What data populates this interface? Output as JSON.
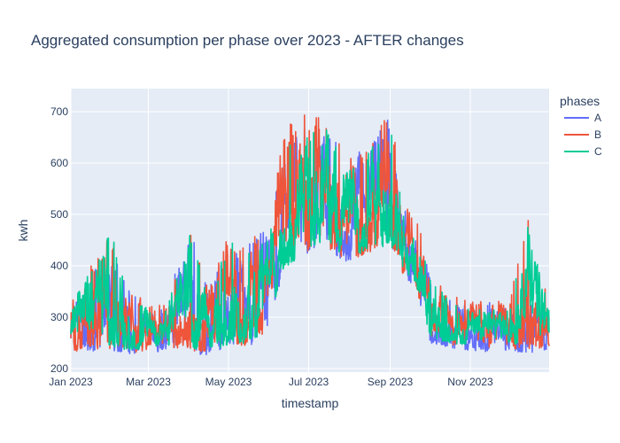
{
  "chart_data": {
    "type": "line",
    "title": "Aggregated consumption per phase over 2023 - AFTER changes",
    "xlabel": "timestamp",
    "ylabel": "kwh",
    "x_range": [
      "2023-01-01",
      "2023-12-31"
    ],
    "ylim": [
      193,
      745
    ],
    "x_ticks": [
      {
        "date": "2023-01-01",
        "label": "Jan 2023"
      },
      {
        "date": "2023-03-01",
        "label": "Mar 2023"
      },
      {
        "date": "2023-05-01",
        "label": "May 2023"
      },
      {
        "date": "2023-07-01",
        "label": "Jul 2023"
      },
      {
        "date": "2023-09-01",
        "label": "Sep 2023"
      },
      {
        "date": "2023-11-01",
        "label": "Nov 2023"
      }
    ],
    "y_ticks": [
      200,
      300,
      400,
      500,
      600,
      700
    ],
    "grid": true,
    "plot_background": "#e5ecf6",
    "legend": {
      "title": "phases",
      "placement": "right"
    },
    "series": [
      {
        "name": "A",
        "color": "#636efa",
        "x": [
          "2023-01-01",
          "2023-01-15",
          "2023-02-01",
          "2023-02-15",
          "2023-03-01",
          "2023-03-15",
          "2023-04-01",
          "2023-04-15",
          "2023-05-01",
          "2023-05-15",
          "2023-06-01",
          "2023-06-10",
          "2023-06-20",
          "2023-07-01",
          "2023-07-15",
          "2023-08-01",
          "2023-08-15",
          "2023-09-01",
          "2023-09-10",
          "2023-09-20",
          "2023-10-01",
          "2023-10-15",
          "2023-11-01",
          "2023-11-15",
          "2023-12-01",
          "2023-12-15",
          "2023-12-31"
        ],
        "band_low": [
          225,
          235,
          230,
          225,
          230,
          235,
          230,
          225,
          235,
          240,
          260,
          380,
          400,
          420,
          430,
          400,
          420,
          430,
          380,
          360,
          250,
          240,
          235,
          230,
          235,
          230,
          235
        ],
        "band_high": [
          335,
          400,
          430,
          350,
          320,
          320,
          500,
          360,
          430,
          440,
          480,
          620,
          660,
          690,
          660,
          610,
          640,
          700,
          520,
          500,
          380,
          340,
          320,
          330,
          320,
          330,
          320
        ]
      },
      {
        "name": "B",
        "color": "#ef553b",
        "x": [
          "2023-01-01",
          "2023-01-15",
          "2023-02-01",
          "2023-02-15",
          "2023-03-01",
          "2023-03-15",
          "2023-04-01",
          "2023-04-15",
          "2023-05-01",
          "2023-05-15",
          "2023-06-01",
          "2023-06-10",
          "2023-06-20",
          "2023-07-01",
          "2023-07-15",
          "2023-08-01",
          "2023-08-15",
          "2023-09-01",
          "2023-09-10",
          "2023-09-20",
          "2023-10-01",
          "2023-10-15",
          "2023-11-01",
          "2023-11-15",
          "2023-12-01",
          "2023-12-15",
          "2023-12-31"
        ],
        "band_low": [
          230,
          240,
          235,
          230,
          235,
          240,
          235,
          230,
          240,
          245,
          265,
          385,
          405,
          425,
          435,
          405,
          425,
          435,
          385,
          365,
          255,
          245,
          240,
          235,
          240,
          235,
          240
        ],
        "band_high": [
          340,
          395,
          480,
          355,
          330,
          325,
          490,
          365,
          460,
          445,
          490,
          650,
          690,
          700,
          680,
          620,
          650,
          722,
          540,
          510,
          390,
          345,
          330,
          335,
          330,
          510,
          320
        ]
      },
      {
        "name": "C",
        "color": "#00cc96",
        "x": [
          "2023-01-01",
          "2023-01-15",
          "2023-02-01",
          "2023-02-15",
          "2023-03-01",
          "2023-03-15",
          "2023-04-01",
          "2023-04-15",
          "2023-05-01",
          "2023-05-15",
          "2023-06-01",
          "2023-06-10",
          "2023-06-20",
          "2023-07-01",
          "2023-07-15",
          "2023-08-01",
          "2023-08-15",
          "2023-09-01",
          "2023-09-10",
          "2023-09-20",
          "2023-10-01",
          "2023-10-15",
          "2023-11-01",
          "2023-11-15",
          "2023-12-01",
          "2023-12-15",
          "2023-12-31"
        ],
        "band_low": [
          235,
          245,
          240,
          235,
          240,
          245,
          240,
          235,
          245,
          250,
          270,
          390,
          410,
          430,
          440,
          410,
          430,
          440,
          390,
          370,
          260,
          250,
          245,
          240,
          245,
          240,
          245
        ],
        "band_high": [
          330,
          385,
          470,
          345,
          315,
          315,
          470,
          350,
          450,
          430,
          470,
          630,
          670,
          680,
          665,
          600,
          630,
          690,
          515,
          495,
          380,
          335,
          315,
          320,
          315,
          490,
          315
        ]
      }
    ]
  }
}
